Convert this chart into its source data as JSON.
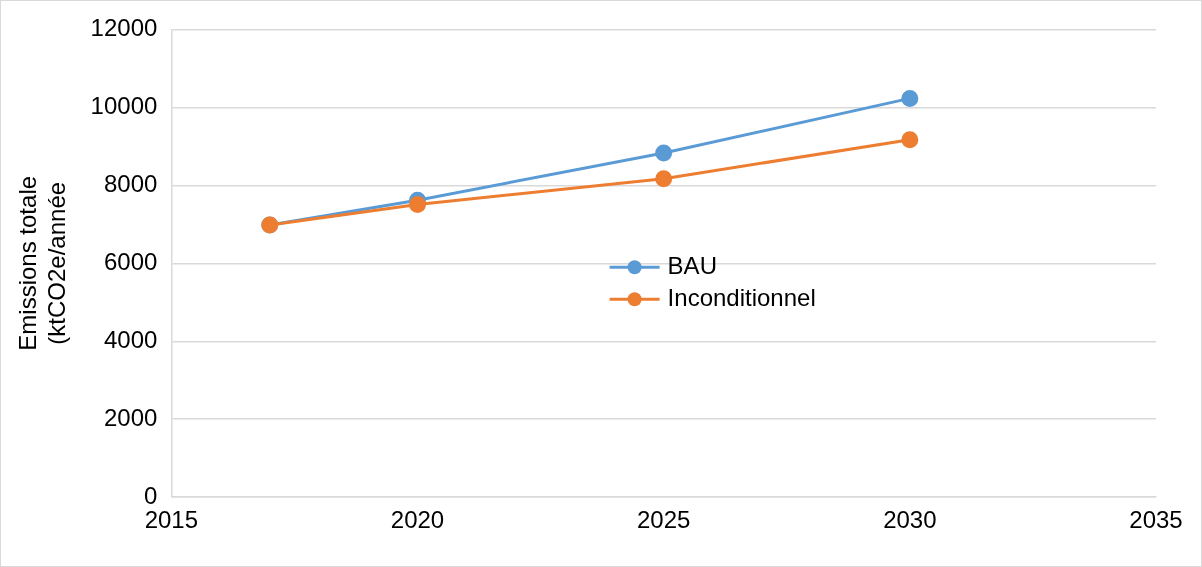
{
  "chart_data": {
    "type": "line",
    "ylabel": "Emissions totale (ktCO2e/année",
    "x": [
      2017,
      2020,
      2025,
      2030
    ],
    "series": [
      {
        "name": "BAU",
        "color": "#5b9bd5",
        "values": [
          6980,
          7620,
          8830,
          10230
        ]
      },
      {
        "name": "Inconditionnel",
        "color": "#ed7d31",
        "values": [
          6980,
          7510,
          8170,
          9170
        ]
      }
    ],
    "xlim": [
      2015,
      2035
    ],
    "xticks": [
      2015,
      2020,
      2025,
      2030,
      2035
    ],
    "ylim": [
      0,
      12000
    ],
    "yticks": [
      0,
      2000,
      4000,
      6000,
      8000,
      10000,
      12000
    ],
    "grid": "y",
    "legend": "center",
    "marker": "circle",
    "line_style": "solid"
  }
}
